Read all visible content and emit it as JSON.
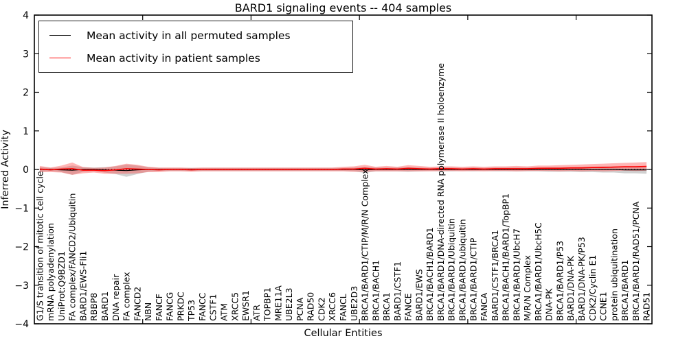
{
  "chart_data": {
    "type": "line",
    "title": "BARD1 signaling events -- 404 samples",
    "xlabel": "Cellular Entities",
    "ylabel": "Inferred Activity",
    "ylim": [
      -4,
      4
    ],
    "yticks": [
      4,
      3,
      2,
      1,
      0,
      -1,
      -2,
      -3,
      -4
    ],
    "x_major_ticks": [
      10,
      20,
      30,
      40,
      50
    ],
    "grid": false,
    "zero_line_style": "dotted",
    "legend_position": "upper left",
    "categories": [
      "G1/S transition of mitotic cell cycle",
      "mRNA polyadenylation",
      "UniProt:Q9BZD1",
      "FA complex/FANCD2/Ubiquitin",
      "BARD1/EWS-Fli1",
      "RBBP8",
      "BARD1",
      "DNA repair",
      "FA complex",
      "FANCD2",
      "NBN",
      "FANCF",
      "FANCG",
      "PRKDC",
      "TP53",
      "FANCC",
      "CSTF1",
      "ATM",
      "XRCC5",
      "EWSR1",
      "ATR",
      "TOPBP1",
      "MRE11A",
      "UBE2L3",
      "PCNA",
      "RAD50",
      "CDK2",
      "XRCC6",
      "FANCL",
      "UBE2D3",
      "BRCA1/BARD1/CTIP/M/R/N Complex",
      "BRCA1/BACH1",
      "BRCA1",
      "BARD1/CSTF1",
      "FANCE",
      "BARD1/EWS",
      "BRCA1/BACH1/BARD1",
      "BRCA1/BARD1/DNA-directed RNA polymerase II holoenzyme",
      "BRCA1/BARD1/Ubiquitin",
      "BRCA1/BARD1/ubiquitin",
      "BRCA1/BARD1/CTIP",
      "FANCA",
      "BARD1/CSTF1/BRCA1",
      "BRCA1/BACH1/BARD1/TopBP1",
      "BRCA1/BARD1/UbcH7",
      "M/R/N Complex",
      "BRCA1/BARD1/UbcH5C",
      "DNA-PK",
      "BRCA1/BARD1/P53",
      "BARD1/DNA-PK",
      "BARD1/DNA-PK/P53",
      "CDK2/Cyclin E1",
      "CCNE1",
      "protein ubiquitination",
      "BRCA1/BARD1",
      "BRCA1/BARD1/RAD51/PCNA",
      "RAD51"
    ],
    "series": [
      {
        "name": "Mean activity in all permuted samples",
        "color": "#000000",
        "band_color": "#969696",
        "band_opacity": 0.45,
        "values": [
          0.0,
          0.0,
          -0.01,
          -0.02,
          0.0,
          0.0,
          -0.01,
          -0.02,
          -0.03,
          -0.01,
          0.0,
          0.0,
          0.0,
          0.0,
          0.0,
          0.0,
          0.0,
          0.0,
          0.0,
          0.0,
          0.0,
          0.0,
          0.0,
          0.0,
          0.0,
          0.0,
          0.0,
          0.0,
          0.0,
          0.0,
          -0.01,
          0.0,
          0.0,
          0.0,
          0.0,
          0.0,
          0.0,
          0.0,
          0.0,
          0.0,
          0.0,
          0.0,
          0.0,
          0.0,
          0.0,
          0.0,
          0.0,
          0.0,
          0.0,
          0.0,
          0.0,
          0.0,
          0.0,
          0.0,
          -0.01,
          -0.01,
          -0.01
        ],
        "band_halfwidth": [
          0.06,
          0.04,
          0.06,
          0.12,
          0.06,
          0.05,
          0.07,
          0.1,
          0.16,
          0.11,
          0.06,
          0.04,
          0.04,
          0.04,
          0.04,
          0.04,
          0.04,
          0.04,
          0.04,
          0.04,
          0.04,
          0.04,
          0.04,
          0.04,
          0.04,
          0.04,
          0.04,
          0.04,
          0.04,
          0.05,
          0.08,
          0.05,
          0.05,
          0.05,
          0.06,
          0.05,
          0.04,
          0.05,
          0.05,
          0.04,
          0.05,
          0.04,
          0.05,
          0.05,
          0.05,
          0.05,
          0.05,
          0.06,
          0.06,
          0.06,
          0.07,
          0.07,
          0.08,
          0.08,
          0.09,
          0.09,
          0.1
        ]
      },
      {
        "name": "Mean activity in patient samples",
        "color": "#ff0000",
        "band_color": "#ff4646",
        "band_opacity": 0.4,
        "values": [
          0.01,
          -0.01,
          0.01,
          0.02,
          -0.02,
          -0.02,
          -0.03,
          -0.01,
          0.02,
          0.01,
          0.0,
          -0.01,
          0.0,
          0.0,
          -0.01,
          0.0,
          0.0,
          0.0,
          0.0,
          0.0,
          0.0,
          0.0,
          0.0,
          0.0,
          0.0,
          0.0,
          0.0,
          0.0,
          0.01,
          0.01,
          0.03,
          0.01,
          0.02,
          0.01,
          0.03,
          0.02,
          0.01,
          0.02,
          0.02,
          0.01,
          0.02,
          0.01,
          0.02,
          0.02,
          0.02,
          0.02,
          0.03,
          0.03,
          0.03,
          0.04,
          0.04,
          0.05,
          0.05,
          0.06,
          0.07,
          0.07,
          0.08
        ],
        "band_halfwidth": [
          0.08,
          0.06,
          0.09,
          0.16,
          0.08,
          0.06,
          0.08,
          0.1,
          0.13,
          0.11,
          0.07,
          0.06,
          0.05,
          0.05,
          0.05,
          0.05,
          0.05,
          0.05,
          0.05,
          0.05,
          0.05,
          0.05,
          0.05,
          0.05,
          0.05,
          0.05,
          0.05,
          0.05,
          0.06,
          0.07,
          0.09,
          0.06,
          0.07,
          0.06,
          0.08,
          0.07,
          0.06,
          0.06,
          0.06,
          0.06,
          0.06,
          0.06,
          0.06,
          0.06,
          0.07,
          0.06,
          0.07,
          0.07,
          0.08,
          0.08,
          0.09,
          0.09,
          0.1,
          0.1,
          0.1,
          0.11,
          0.11
        ]
      }
    ]
  }
}
